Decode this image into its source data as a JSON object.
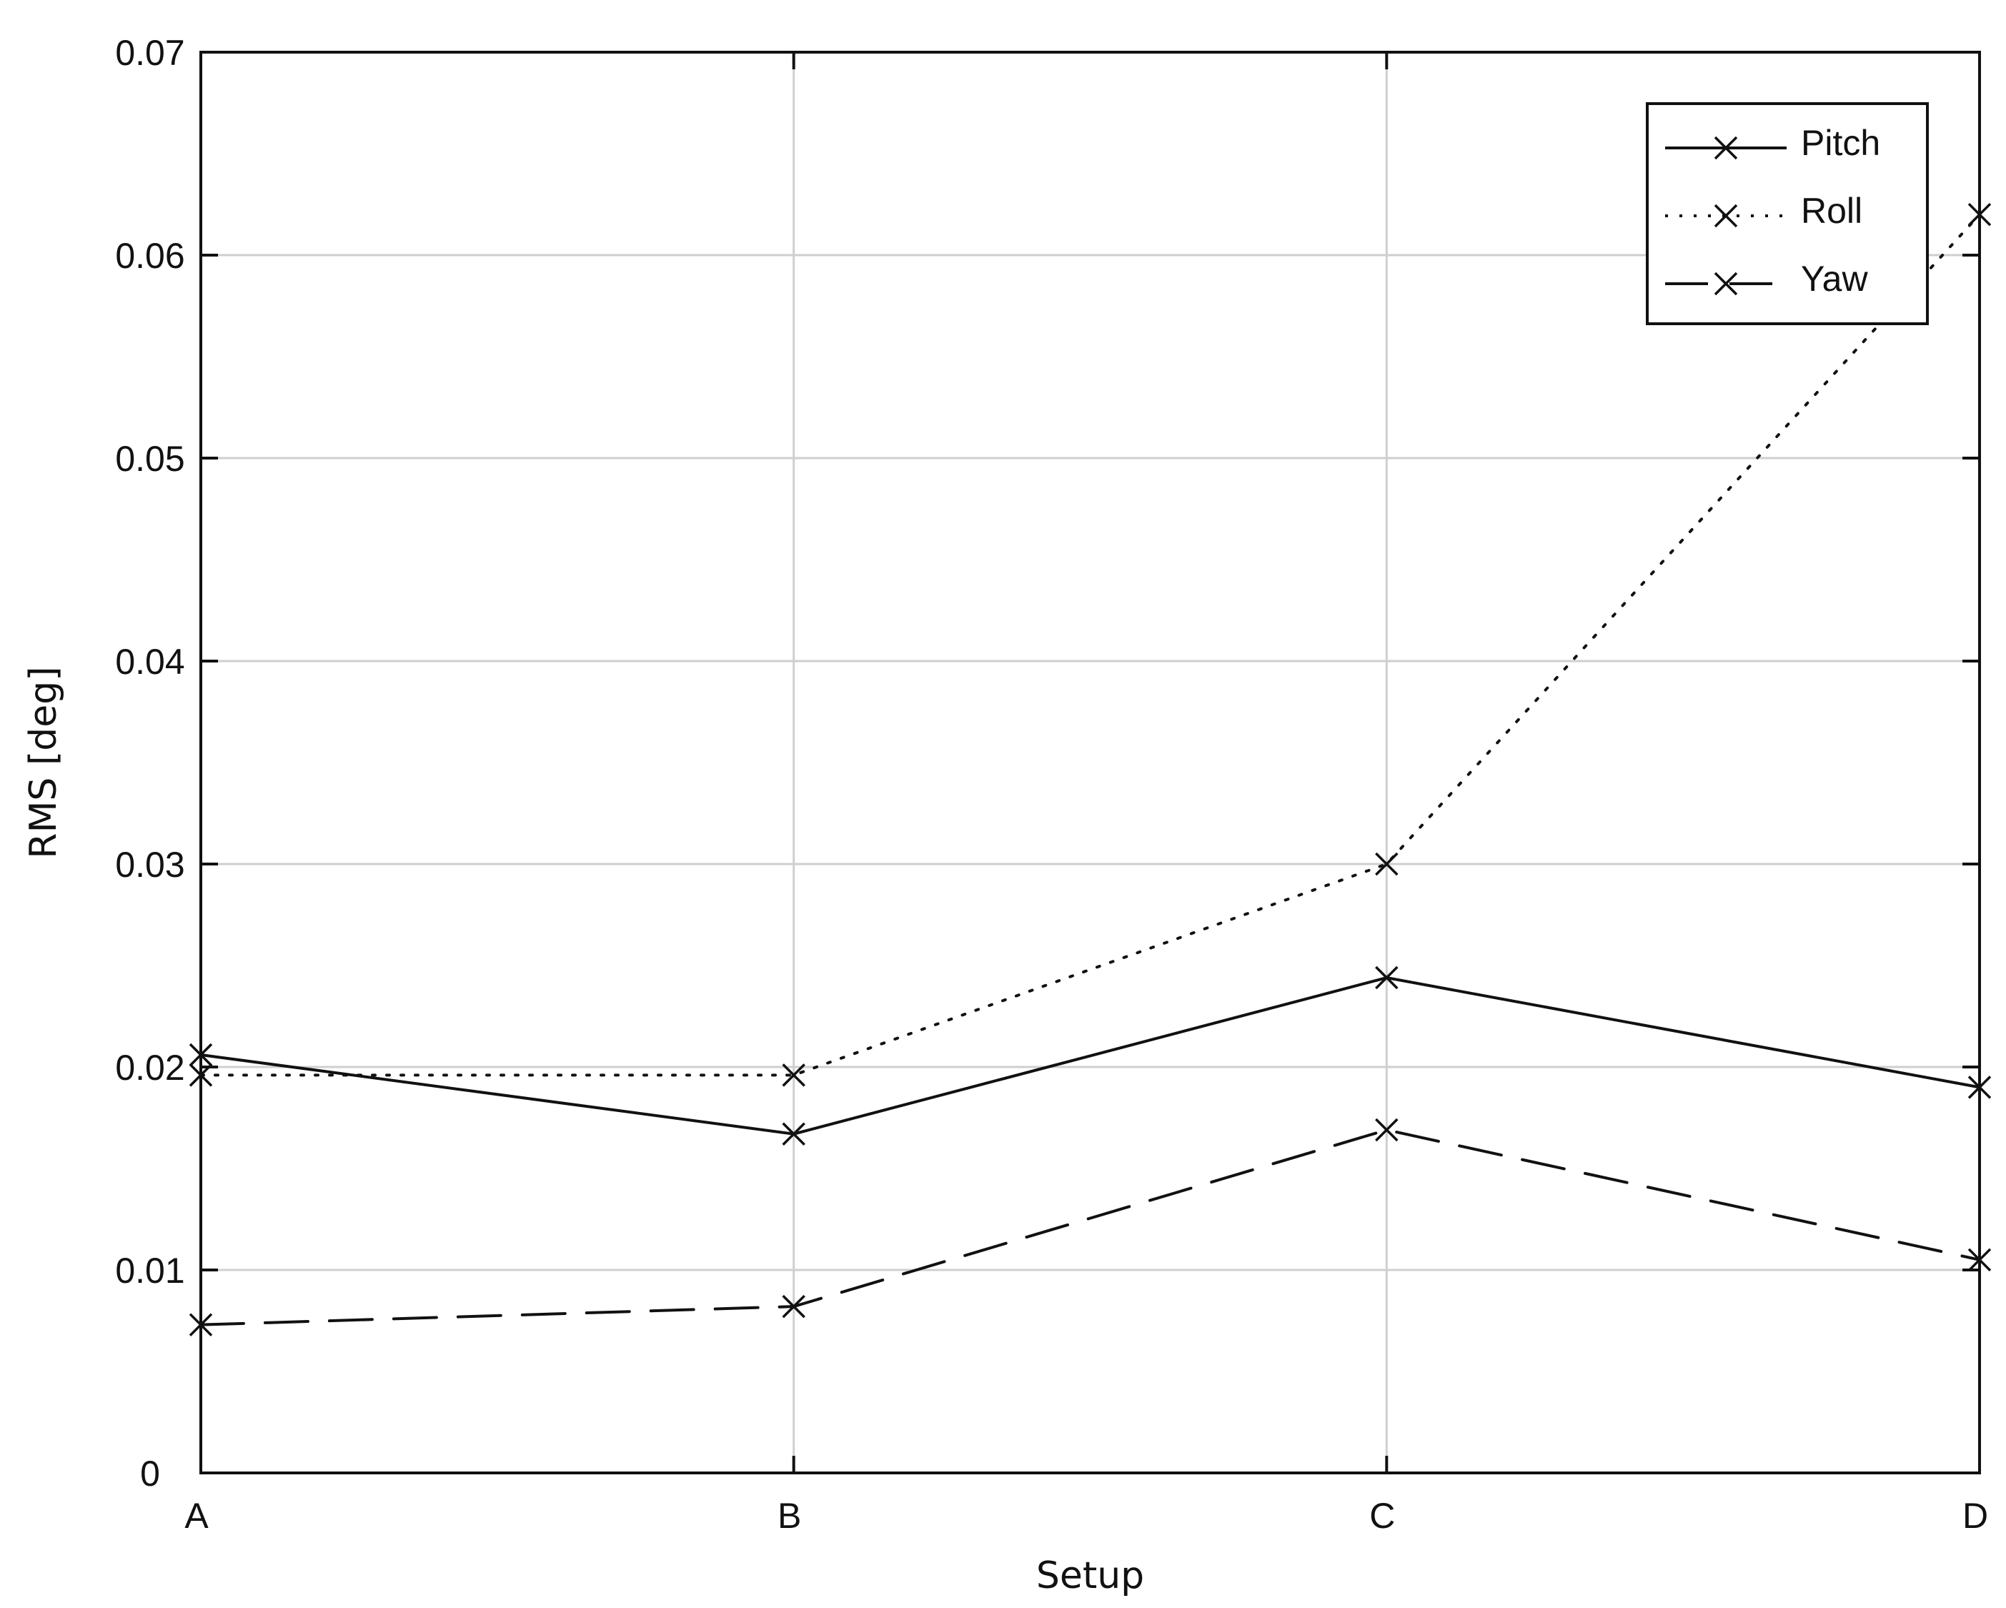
{
  "chart_data": {
    "type": "line",
    "title": "",
    "xlabel": "Setup",
    "ylabel": "RMS [deg]",
    "categories": [
      "A",
      "B",
      "C",
      "D"
    ],
    "ylim": [
      0,
      0.07
    ],
    "yticks": [
      0,
      0.01,
      0.02,
      0.03,
      0.04,
      0.05,
      0.06,
      0.07
    ],
    "ytick_labels": [
      "0",
      "0.01",
      "0.02",
      "0.03",
      "0.04",
      "0.05",
      "0.06",
      "0.07"
    ],
    "grid": true,
    "legend_position": "top-right",
    "marker": "x",
    "series": [
      {
        "name": "Pitch",
        "line_style": "solid",
        "color": "#111111",
        "values": [
          0.0206,
          0.0167,
          0.0244,
          0.019
        ]
      },
      {
        "name": "Roll",
        "line_style": "dotted",
        "color": "#111111",
        "values": [
          0.0196,
          0.0196,
          0.03,
          0.062
        ]
      },
      {
        "name": "Yaw",
        "line_style": "dashed",
        "color": "#111111",
        "values": [
          0.0073,
          0.0082,
          0.0169,
          0.0105
        ]
      }
    ]
  }
}
